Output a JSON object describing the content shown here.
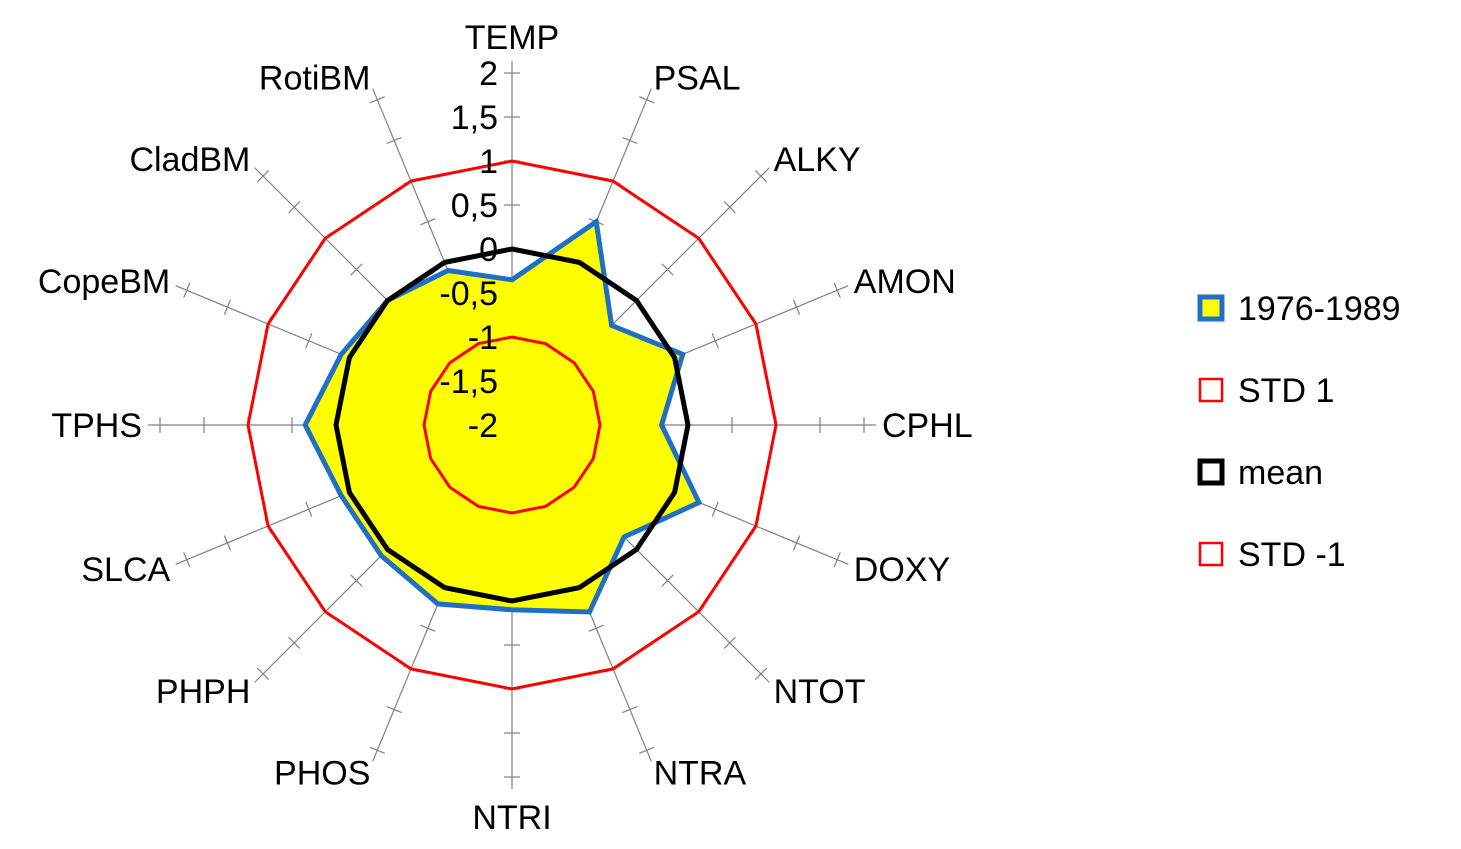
{
  "chart_data": {
    "type": "radar",
    "categories": [
      "TEMP",
      "PSAL",
      "ALKY",
      "AMON",
      "CPHL",
      "DOXY",
      "NTOT",
      "NTRA",
      "NTRI",
      "PHOS",
      "PHPH",
      "SLCA",
      "TPHS",
      "CopeBM",
      "CladBM",
      "RotiBM"
    ],
    "rlim": [
      -2,
      2
    ],
    "ticks": [
      {
        "value": 2,
        "label": "2"
      },
      {
        "value": 1.5,
        "label": "1,5"
      },
      {
        "value": 1,
        "label": "1"
      },
      {
        "value": 0.5,
        "label": "0,5"
      },
      {
        "value": 0,
        "label": "0"
      },
      {
        "value": -0.5,
        "label": "-0,5"
      },
      {
        "value": -1,
        "label": "-1"
      },
      {
        "value": -1.5,
        "label": "-1,5"
      },
      {
        "value": -2,
        "label": "-2"
      }
    ],
    "series": [
      {
        "name": "1976-1989",
        "values": [
          -0.35,
          0.5,
          -0.4,
          0.1,
          -0.3,
          0.3,
          -0.2,
          0.3,
          0.1,
          0.2,
          0.1,
          0.1,
          0.35,
          0.1,
          0.0,
          -0.1
        ],
        "fill": "#ffff00",
        "stroke": "#1f6fc9",
        "stroke_width": 5
      },
      {
        "name": "STD 1",
        "values": [
          1,
          1,
          1,
          1,
          1,
          1,
          1,
          1,
          1,
          1,
          1,
          1,
          1,
          1,
          1,
          1
        ],
        "fill": "none",
        "stroke": "#ff0000",
        "stroke_width": 3
      },
      {
        "name": "mean",
        "values": [
          0,
          0,
          0,
          0,
          0,
          0,
          0,
          0,
          0,
          0,
          0,
          0,
          0,
          0,
          0,
          0
        ],
        "fill": "none",
        "stroke": "#000000",
        "stroke_width": 5
      },
      {
        "name": "STD -1",
        "values": [
          -1,
          -1,
          -1,
          -1,
          -1,
          -1,
          -1,
          -1,
          -1,
          -1,
          -1,
          -1,
          -1,
          -1,
          -1,
          -1
        ],
        "fill": "none",
        "stroke": "#ff0000",
        "stroke_width": 3
      }
    ],
    "legend": "right"
  }
}
